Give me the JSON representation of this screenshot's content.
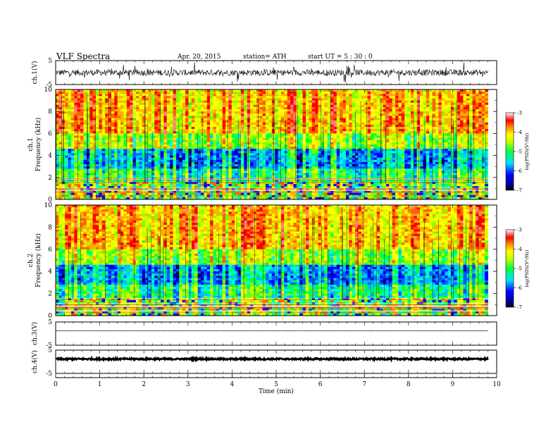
{
  "header": {
    "title": "VLF  Spectra",
    "date": "Apr. 20, 2015",
    "station": "station= ATH",
    "start": "start  UT  =   5  : 30 : 0"
  },
  "chart_data": [
    {
      "id": "ch1-waveform",
      "type": "line",
      "ylabel": "ch.1(V)",
      "yticks": [
        "5",
        "-5"
      ],
      "ylim": [
        -5,
        5
      ],
      "description_trace": "noisy broadband waveform, amplitude about ±1.5 V with spikes to ±4 V",
      "xlim": [
        0,
        9.8
      ]
    },
    {
      "id": "ch1-spectrogram",
      "type": "heatmap",
      "ylabel_top": "ch.1",
      "ylabel": "Frequency  (kHz)",
      "yticks": [
        "0",
        "2",
        "4",
        "6",
        "8",
        "10"
      ],
      "ylim": [
        0,
        10
      ],
      "xlim": [
        0,
        9.8
      ],
      "colorbar": {
        "label": "log(PSD)(V²/Hz)",
        "ticks": [
          "-3",
          "-4",
          "-5",
          "-6",
          "-7"
        ],
        "range": [
          -7,
          -3
        ],
        "colors": [
          "#000000",
          "#0000ff",
          "#00ffff",
          "#00ff00",
          "#ffff00",
          "#ff8000",
          "#ff0000",
          "#ffffff"
        ]
      }
    },
    {
      "id": "ch2-spectrogram",
      "type": "heatmap",
      "ylabel_top": "ch.2",
      "ylabel": "Frequency  (kHz)",
      "yticks": [
        "0",
        "2",
        "4",
        "6",
        "8",
        "10"
      ],
      "ylim": [
        0,
        10
      ],
      "xlim": [
        0,
        9.8
      ],
      "colorbar": {
        "label": "log(PSD)(V²/Hz)",
        "ticks": [
          "-3",
          "-4",
          "-5",
          "-6",
          "-7"
        ],
        "range": [
          -7,
          -3
        ]
      }
    },
    {
      "id": "ch3-waveform",
      "type": "line",
      "ylabel": "ch.3(V)",
      "yticks": [
        "5",
        "-5"
      ],
      "ylim": [
        -5,
        5
      ],
      "xlim": [
        0,
        9.8
      ]
    },
    {
      "id": "ch4-waveform",
      "type": "line",
      "ylabel": "ch.4(V)",
      "yticks": [
        "5",
        "-5"
      ],
      "ylim": [
        -5,
        5
      ],
      "xlim": [
        0,
        9.8
      ]
    }
  ],
  "x_axis": {
    "label": "Time  (min)",
    "ticks": [
      "0",
      "1",
      "2",
      "3",
      "4",
      "5",
      "6",
      "7",
      "8",
      "9",
      "10"
    ],
    "range": [
      0,
      10
    ]
  }
}
